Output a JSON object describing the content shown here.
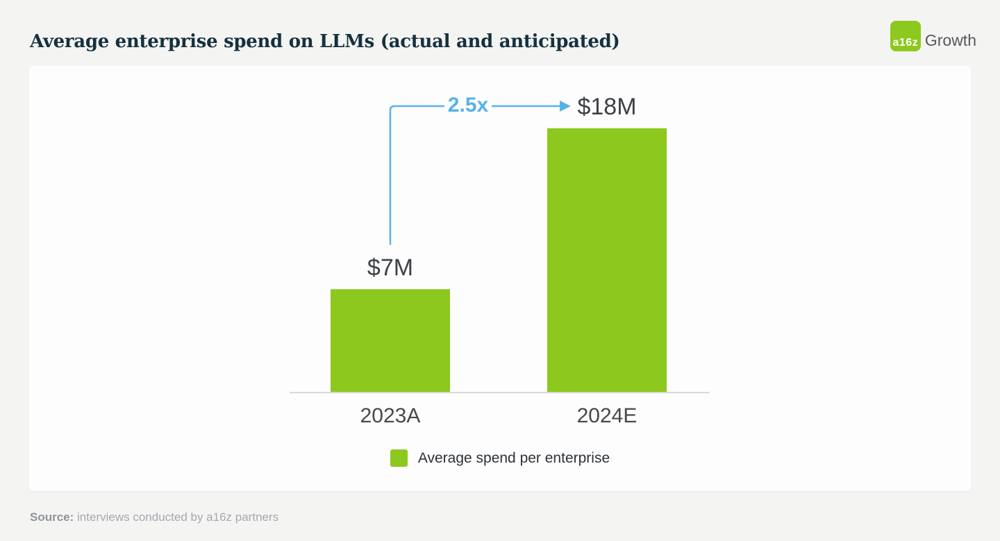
{
  "header": {
    "title": "Average enterprise spend on LLMs (actual and anticipated)",
    "logo": {
      "mark": "a16z",
      "suffix": "Growth"
    }
  },
  "chart_data": {
    "type": "bar",
    "title": "Average enterprise spend on LLMs (actual and anticipated)",
    "categories": [
      "2023A",
      "2024E"
    ],
    "values": [
      7,
      18
    ],
    "value_labels": [
      "$7M",
      "$18M"
    ],
    "annotation": "2.5x",
    "legend": [
      "Average spend per enterprise"
    ],
    "legend_position": "bottom",
    "grid": false,
    "ylim": [
      0,
      18
    ],
    "colors": {
      "bar": "#8dc81e",
      "annotation": "#56b3e8",
      "title": "#16303e",
      "label": "#3d4146"
    }
  },
  "source": {
    "label": "Source:",
    "text": "interviews conducted by a16z partners"
  }
}
